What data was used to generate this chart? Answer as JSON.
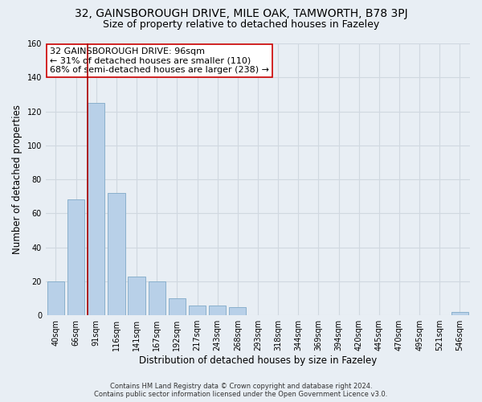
{
  "title": "32, GAINSBOROUGH DRIVE, MILE OAK, TAMWORTH, B78 3PJ",
  "subtitle": "Size of property relative to detached houses in Fazeley",
  "xlabel": "Distribution of detached houses by size in Fazeley",
  "ylabel": "Number of detached properties",
  "bar_labels": [
    "40sqm",
    "66sqm",
    "91sqm",
    "116sqm",
    "141sqm",
    "167sqm",
    "192sqm",
    "217sqm",
    "243sqm",
    "268sqm",
    "293sqm",
    "318sqm",
    "344sqm",
    "369sqm",
    "394sqm",
    "420sqm",
    "445sqm",
    "470sqm",
    "495sqm",
    "521sqm",
    "546sqm"
  ],
  "bar_values": [
    20,
    68,
    125,
    72,
    23,
    20,
    10,
    6,
    6,
    5,
    0,
    0,
    0,
    0,
    0,
    0,
    0,
    0,
    0,
    0,
    2
  ],
  "bar_color": "#b8d0e8",
  "bar_edge_color": "#8ab0cc",
  "vline_x_index": 2,
  "vline_color": "#aa0000",
  "ylim": [
    0,
    160
  ],
  "yticks": [
    0,
    20,
    40,
    60,
    80,
    100,
    120,
    140,
    160
  ],
  "annotation_title": "32 GAINSBOROUGH DRIVE: 96sqm",
  "annotation_line1": "← 31% of detached houses are smaller (110)",
  "annotation_line2": "68% of semi-detached houses are larger (238) →",
  "annotation_box_color": "#ffffff",
  "annotation_box_edge": "#cc0000",
  "footer_line1": "Contains HM Land Registry data © Crown copyright and database right 2024.",
  "footer_line2": "Contains public sector information licensed under the Open Government Licence v3.0.",
  "bg_color": "#e8eef4",
  "grid_color": "#d0d8e0",
  "title_fontsize": 10,
  "subtitle_fontsize": 9,
  "axis_label_fontsize": 8.5,
  "tick_fontsize": 7,
  "footer_fontsize": 6,
  "annotation_fontsize": 8
}
